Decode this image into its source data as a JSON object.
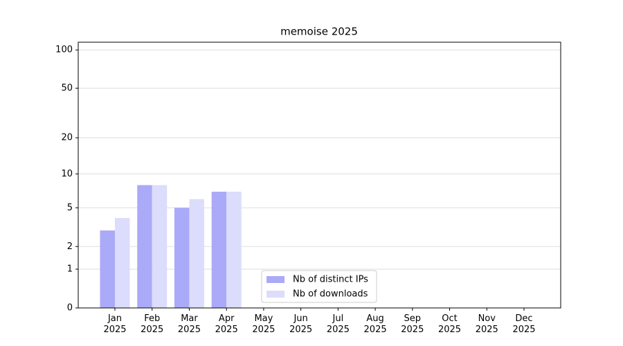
{
  "chart_data": {
    "type": "bar",
    "title": "memoise 2025",
    "categories": [
      "Jan\n2025",
      "Feb\n2025",
      "Mar\n2025",
      "Apr\n2025",
      "May\n2025",
      "Jun\n2025",
      "Jul\n2025",
      "Aug\n2025",
      "Sep\n2025",
      "Oct\n2025",
      "Nov\n2025",
      "Dec\n2025"
    ],
    "series": [
      {
        "name": "Nb of distinct IPs",
        "color": "#aaaaf8",
        "values": [
          3,
          8,
          5,
          7,
          null,
          null,
          null,
          null,
          null,
          null,
          null,
          null
        ]
      },
      {
        "name": "Nb of downloads",
        "color": "#dcdcfc",
        "values": [
          4,
          8,
          6,
          7,
          null,
          null,
          null,
          null,
          null,
          null,
          null,
          null
        ]
      }
    ],
    "yscale": "log1p",
    "ylim": [
      0,
      115
    ],
    "yticks": [
      0,
      1,
      2,
      5,
      10,
      20,
      50,
      100
    ],
    "grid": true,
    "legend": "lower center"
  }
}
